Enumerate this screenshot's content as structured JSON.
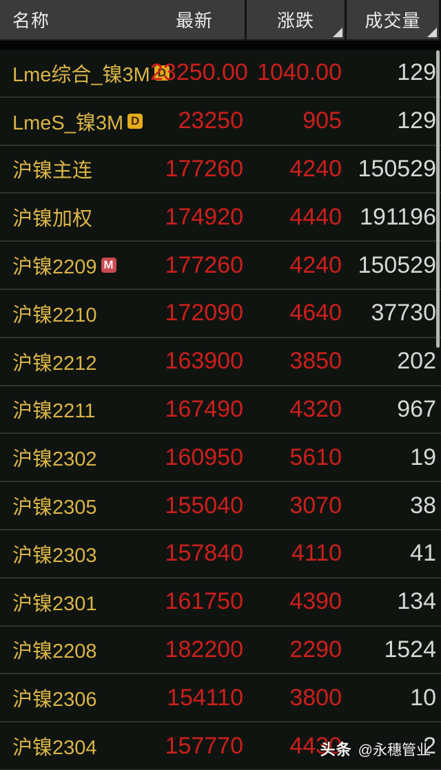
{
  "header": {
    "columns": [
      {
        "label": "名称",
        "sortable": false
      },
      {
        "label": "最新",
        "sortable": false
      },
      {
        "label": "涨跌",
        "sortable": true
      },
      {
        "label": "成交量",
        "sortable": true
      }
    ]
  },
  "rows": [
    {
      "name": "Lme综合_镍3M",
      "badge": "D",
      "last": "23250.00",
      "change": "1040.00",
      "volume": "129"
    },
    {
      "name": "LmeS_镍3M",
      "badge": "D",
      "last": "23250",
      "change": "905",
      "volume": "129"
    },
    {
      "name": "沪镍主连",
      "badge": "",
      "last": "177260",
      "change": "4240",
      "volume": "150529"
    },
    {
      "name": "沪镍加权",
      "badge": "",
      "last": "174920",
      "change": "4440",
      "volume": "191196"
    },
    {
      "name": "沪镍2209",
      "badge": "M",
      "last": "177260",
      "change": "4240",
      "volume": "150529"
    },
    {
      "name": "沪镍2210",
      "badge": "",
      "last": "172090",
      "change": "4640",
      "volume": "37730"
    },
    {
      "name": "沪镍2212",
      "badge": "",
      "last": "163900",
      "change": "3850",
      "volume": "202"
    },
    {
      "name": "沪镍2211",
      "badge": "",
      "last": "167490",
      "change": "4320",
      "volume": "967"
    },
    {
      "name": "沪镍2302",
      "badge": "",
      "last": "160950",
      "change": "5610",
      "volume": "19"
    },
    {
      "name": "沪镍2305",
      "badge": "",
      "last": "155040",
      "change": "3070",
      "volume": "38"
    },
    {
      "name": "沪镍2303",
      "badge": "",
      "last": "157840",
      "change": "4110",
      "volume": "41"
    },
    {
      "name": "沪镍2301",
      "badge": "",
      "last": "161750",
      "change": "4390",
      "volume": "134"
    },
    {
      "name": "沪镍2208",
      "badge": "",
      "last": "182200",
      "change": "2290",
      "volume": "1524"
    },
    {
      "name": "沪镍2306",
      "badge": "",
      "last": "154110",
      "change": "3800",
      "volume": "10"
    },
    {
      "name": "沪镍2304",
      "badge": "",
      "last": "157770",
      "change": "4430",
      "volume": "2"
    }
  ],
  "watermark": {
    "brand": "头条",
    "handle": "@永穗管业"
  },
  "colors": {
    "header_bg": "#3b3b3b",
    "body_bg": "#101410",
    "name_text": "#d9b548",
    "price_up": "#cc1f1d",
    "volume_text": "#d6d8d6",
    "badge_d_bg": "#e5ac1d",
    "badge_m_bg": "#c94b53",
    "scrollbar": "#b2bab2"
  }
}
